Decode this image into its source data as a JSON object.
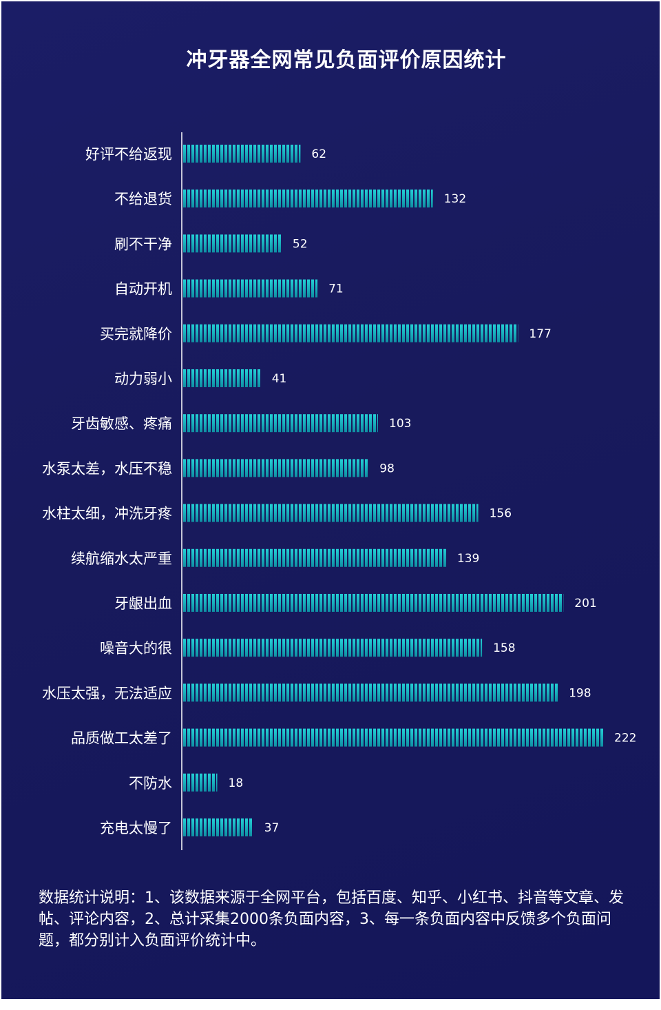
{
  "chart_data": {
    "type": "bar",
    "orientation": "horizontal",
    "title": "冲牙器全网常见负面评价原因统计",
    "categories": [
      "好评不给返现",
      "不给退货",
      "刷不干净",
      "自动开机",
      "买完就降价",
      "动力弱小",
      "牙齿敏感、疼痛",
      "水泵太差，水压不稳",
      "水柱太细，冲洗牙疼",
      "续航缩水太严重",
      "牙龈出血",
      "噪音大的很",
      "水压太强，无法适应",
      "品质做工太差了",
      "不防水",
      "充电太慢了"
    ],
    "values": [
      62,
      132,
      52,
      71,
      177,
      41,
      103,
      98,
      156,
      139,
      201,
      158,
      198,
      222,
      18,
      37
    ],
    "xlim": [
      0,
      222
    ],
    "grid": false,
    "legend": "none",
    "bar_color": "#13a3b3",
    "bar_color_light": "#1cc4cc",
    "axis_color": "#ffffff"
  },
  "footnote": "数据统计说明：1、该数据来源于全网平台，包括百度、知乎、小红书、抖音等文章、发帖、评论内容，2、总计采集2000条负面内容，3、每一条负面内容中反馈多个负面问题，都分别计入负面评价统计中。"
}
